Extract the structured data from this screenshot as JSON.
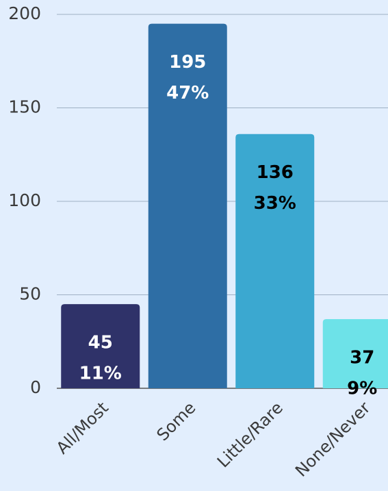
{
  "chart_data": {
    "type": "bar",
    "categories": [
      "All/Most",
      "Some",
      "Little/Rare",
      "None/Never"
    ],
    "values": [
      45,
      195,
      136,
      37
    ],
    "percent": {
      "values": [
        11,
        47,
        33,
        9
      ],
      "value_labels": [
        "11%",
        "47%",
        "33%",
        "9%"
      ]
    },
    "colors": [
      "#2f3269",
      "#2e6ea5",
      "#3ba8d0",
      "#6de2e8"
    ],
    "label_colors": [
      "#ffffff",
      "#ffffff",
      "#000000",
      "#000000"
    ],
    "ylim": [
      0,
      200
    ],
    "yticks": [
      0,
      50,
      100,
      150,
      200
    ],
    "grid": true
  }
}
